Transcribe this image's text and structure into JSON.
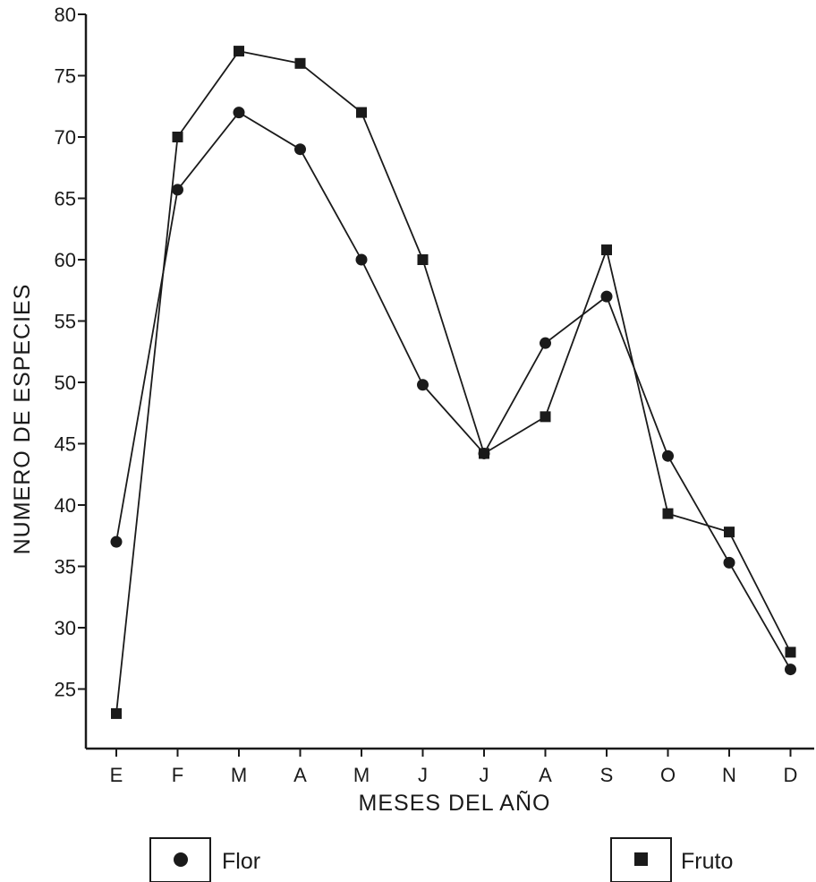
{
  "chart_data": {
    "type": "line",
    "title": "",
    "xlabel": "MESES DEL AÑO",
    "ylabel": "NUMERO DE ESPECIES",
    "categories": [
      "E",
      "F",
      "M",
      "A",
      "M",
      "J",
      "J",
      "A",
      "S",
      "O",
      "N",
      "D"
    ],
    "ylim": [
      20,
      80
    ],
    "yticks": [
      25,
      30,
      35,
      40,
      45,
      50,
      55,
      60,
      65,
      70,
      75,
      80
    ],
    "grid": false,
    "legend_position": "bottom",
    "series": [
      {
        "name": "Flor",
        "marker": "circle",
        "values": [
          37,
          65.7,
          72,
          69,
          60,
          49.8,
          44.2,
          53.2,
          57,
          44,
          35.3,
          26.6
        ]
      },
      {
        "name": "Fruto",
        "marker": "square",
        "values": [
          23,
          70,
          77,
          76,
          72,
          60,
          44.2,
          47.2,
          60.8,
          39.3,
          37.8,
          28
        ]
      }
    ]
  }
}
